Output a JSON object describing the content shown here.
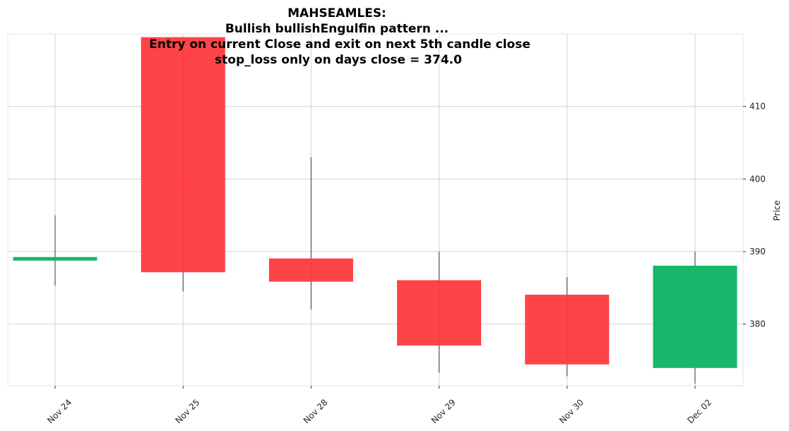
{
  "chart_data": {
    "type": "candlestick",
    "title_lines": [
      "MAHSEAMLES:",
      "Bullish bullishEngulfin pattern ...",
      "Entry on current Close and exit on next 5th candle close",
      "stop_loss only on days close = 374.0"
    ],
    "ylabel": "Price",
    "xlabel": "",
    "ylim": [
      371.5,
      420.0
    ],
    "yticks": [
      380,
      390,
      400,
      410
    ],
    "grid": true,
    "categories": [
      "Nov 24",
      "Nov 25",
      "Nov 28",
      "Nov 29",
      "Nov 30",
      "Dec 02"
    ],
    "candles": [
      {
        "date": "Nov 24",
        "open": 388.8,
        "high": 395.0,
        "low": 385.3,
        "close": 389.2
      },
      {
        "date": "Nov 25",
        "open": 419.5,
        "high": 419.5,
        "low": 384.5,
        "close": 387.2
      },
      {
        "date": "Nov 28",
        "open": 389.0,
        "high": 403.0,
        "low": 382.0,
        "close": 385.9
      },
      {
        "date": "Nov 29",
        "open": 386.0,
        "high": 390.0,
        "low": 373.3,
        "close": 377.1
      },
      {
        "date": "Nov 30",
        "open": 384.0,
        "high": 386.5,
        "low": 372.8,
        "close": 374.5
      },
      {
        "date": "Dec 02",
        "open": 374.0,
        "high": 390.0,
        "low": 371.8,
        "close": 388.0
      }
    ],
    "colors": {
      "up": "#16b76b",
      "down": "#ff3a3e",
      "wick": "#555555",
      "grid": "#d3d3d3",
      "spine": "#e6e6e6"
    }
  }
}
